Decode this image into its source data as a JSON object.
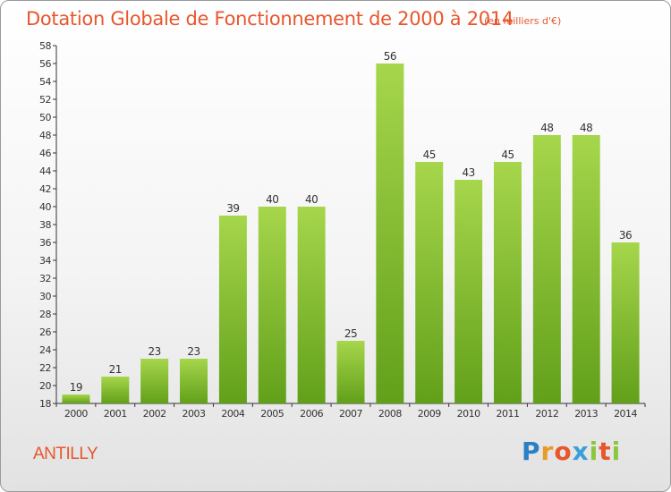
{
  "title": "Dotation Globale de Fonctionnement de 2000 à 2014",
  "subtitle": "(en milliers d'€)",
  "commune": "ANTILLY",
  "logo": {
    "letters": [
      "P",
      "r",
      "o",
      "x",
      "i",
      "t",
      "i"
    ],
    "colors": [
      "#2b7fc4",
      "#e89a2a",
      "#e8562c",
      "#3aa0d8",
      "#8cc63e",
      "#e8562c",
      "#8cc63e"
    ]
  },
  "colors": {
    "bar_light": "#a6d64c",
    "bar_dark": "#62a01a",
    "text": "#e8562c",
    "axis": "#333333"
  },
  "chart_data": {
    "type": "bar",
    "categories": [
      "2000",
      "2001",
      "2002",
      "2003",
      "2004",
      "2005",
      "2006",
      "2007",
      "2008",
      "2009",
      "2010",
      "2011",
      "2012",
      "2013",
      "2014"
    ],
    "values": [
      19,
      21,
      23,
      23,
      39,
      40,
      40,
      25,
      56,
      45,
      43,
      45,
      48,
      48,
      36
    ],
    "ylim": [
      18,
      58
    ],
    "ytick_step": 2,
    "grid": false,
    "data_labels": true
  }
}
